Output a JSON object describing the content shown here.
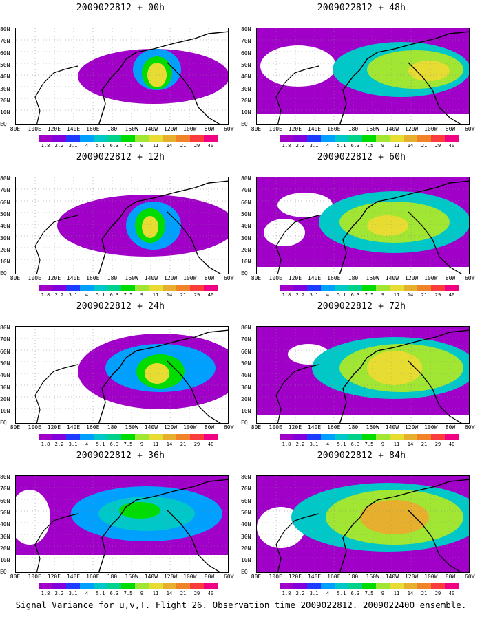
{
  "caption": "Signal Variance for u,v,T. Flight 26. Observation time 2009022812. 2009022400 ensemble.",
  "panels": [
    {
      "title": "2009022812 + 00h"
    },
    {
      "title": "2009022812 + 48h"
    },
    {
      "title": "2009022812 + 12h"
    },
    {
      "title": "2009022812 + 60h"
    },
    {
      "title": "2009022812 + 24h"
    },
    {
      "title": "2009022812 + 72h"
    },
    {
      "title": "2009022812 + 36h"
    },
    {
      "title": "2009022812 + 84h"
    }
  ],
  "lat_labels": [
    "80N",
    "70N",
    "60N",
    "50N",
    "40N",
    "30N",
    "20N",
    "10N",
    "EQ"
  ],
  "lon_labels": [
    "80E",
    "100E",
    "120E",
    "140E",
    "160E",
    "180",
    "160W",
    "140W",
    "120W",
    "100W",
    "80W",
    "60W"
  ],
  "colorbar": {
    "labels": [
      "1.8",
      "2.2",
      "3.1",
      "4",
      "5.1",
      "6.3",
      "7.5",
      "9",
      "11",
      "14",
      "21",
      "29",
      "40"
    ],
    "colors": [
      "#a000c8",
      "#8200dc",
      "#1e3cff",
      "#00a0ff",
      "#00c8c8",
      "#00d28c",
      "#00dc00",
      "#a0e632",
      "#e6dc32",
      "#e6af2d",
      "#f08228",
      "#fa3c3c",
      "#f00082"
    ]
  }
}
